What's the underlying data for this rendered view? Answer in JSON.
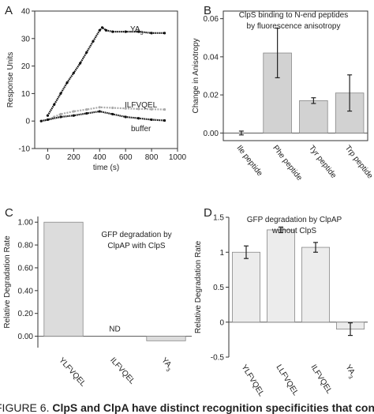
{
  "panel_letters": [
    "A",
    "B",
    "C",
    "D"
  ],
  "caption": {
    "prefix": "FIGURE 6.",
    "bold": "ClpS and ClpA have distinct recognition specificities that con"
  },
  "chart_data": [
    {
      "panel": "A",
      "type": "line",
      "xlabel": "time (s)",
      "ylabel": "Response Units",
      "xlim": [
        -100,
        1000
      ],
      "ylim": [
        -10,
        40
      ],
      "xticks": [
        "0",
        "200",
        "400",
        "600",
        "800",
        "1000"
      ],
      "yticks": [
        "-10",
        "0",
        "10",
        "20",
        "30",
        "40"
      ],
      "grid": false,
      "series": [
        {
          "name": "YA3",
          "color": "#111111",
          "x": [
            0,
            50,
            100,
            150,
            200,
            250,
            300,
            350,
            400,
            420,
            450,
            500,
            600,
            700,
            800,
            900
          ],
          "y": [
            2,
            6,
            10,
            14,
            17.5,
            21,
            25,
            29,
            33,
            34,
            33,
            32.5,
            32.5,
            32.5,
            32,
            32
          ]
        },
        {
          "name": "ILFVQEL",
          "color": "#aaaaaa",
          "x": [
            -50,
            0,
            50,
            100,
            200,
            300,
            400,
            500,
            600,
            700,
            800,
            900
          ],
          "y": [
            0,
            0.5,
            1.5,
            2.5,
            3.5,
            4.2,
            5,
            4.8,
            4.6,
            4.4,
            4.3,
            4.2
          ]
        },
        {
          "name": "buffer",
          "color": "#111111",
          "x": [
            -50,
            0,
            100,
            200,
            300,
            400,
            500,
            600,
            700,
            800,
            900
          ],
          "y": [
            0,
            0.5,
            1.5,
            2,
            2.8,
            3.5,
            2.5,
            1.5,
            1,
            0.5,
            0.2
          ]
        }
      ]
    },
    {
      "panel": "B",
      "type": "bar",
      "title": "ClpS binding to N-end peptides by fluorescence anisotropy",
      "title_lines": [
        "ClpS binding to N-end peptides",
        "by fluorescence anisotropy"
      ],
      "ylabel": "Change in Anisotropy",
      "categories": [
        "Ile peptide",
        "Phe peptide",
        "Tyr peptide",
        "Trp peptide"
      ],
      "values": [
        0.0,
        0.042,
        0.017,
        0.021
      ],
      "errors": [
        0.001,
        0.013,
        0.0015,
        0.0095
      ],
      "ylim": [
        -0.004,
        0.064
      ],
      "yticks": [
        "0.00",
        "0.02",
        "0.04",
        "0.06"
      ],
      "bar_color": "#d2d2d2",
      "grid": false
    },
    {
      "panel": "C",
      "type": "bar",
      "title": "GFP degradation by ClpAP with ClpS",
      "title_lines": [
        "GFP degradation by",
        "ClpAP with ClpS"
      ],
      "ylabel": "Relative Degradation Rate",
      "categories": [
        "YLFVQEL",
        "ILFVQEL",
        "YA3"
      ],
      "values": [
        1.0,
        0.0,
        -0.04
      ],
      "annotations": [
        {
          "category": "ILFVQEL",
          "text": "ND"
        }
      ],
      "ylim": [
        -0.1,
        1.05
      ],
      "yticks": [
        "0.00",
        "0.20",
        "0.40",
        "0.60",
        "0.80",
        "1.00"
      ],
      "bar_color": "#dcdcdc",
      "grid": false
    },
    {
      "panel": "D",
      "type": "bar",
      "title": "GFP degradation by ClpAP without ClpS",
      "title_lines": [
        "GFP degradation by ClpAP",
        "without ClpS"
      ],
      "ylabel": "Relative Degradation Rate",
      "categories": [
        "YLFVQEL",
        "LLFVQEL",
        "ILFVQEL",
        "YA3"
      ],
      "values": [
        1.0,
        1.32,
        1.07,
        -0.1
      ],
      "errors": [
        0.09,
        0.04,
        0.07,
        0.09
      ],
      "ylim": [
        -0.5,
        1.5
      ],
      "yticks": [
        "-0.5",
        "0",
        "0.5",
        "1",
        "1.5"
      ],
      "bar_color": "#ececec",
      "grid": false
    }
  ]
}
